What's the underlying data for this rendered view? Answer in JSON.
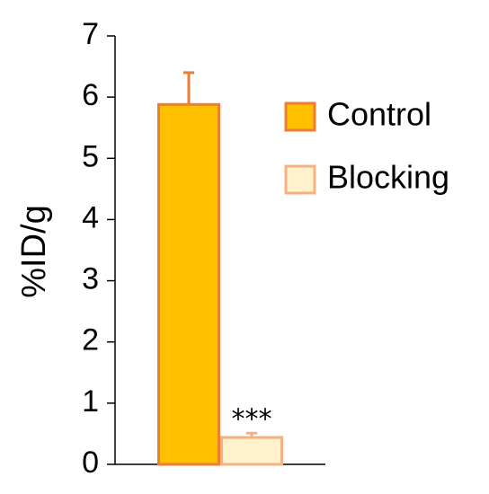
{
  "chart_data": {
    "type": "bar",
    "ylabel": "%ID/g",
    "categories": [
      null
    ],
    "series": [
      {
        "name": "Control",
        "color": "#FFC000",
        "edgecolor": "#ED7D31",
        "values": [
          5.88
        ],
        "errors": [
          0.52
        ]
      },
      {
        "name": "Blocking",
        "color": "#FFF2CC",
        "edgecolor": "#F4B183",
        "values": [
          0.44
        ],
        "errors": [
          0.07
        ],
        "annotation": "***"
      }
    ],
    "ylim": [
      0,
      7
    ],
    "yticks": [
      0,
      1,
      2,
      3,
      4,
      5,
      6,
      7
    ],
    "legend": "upper right"
  }
}
